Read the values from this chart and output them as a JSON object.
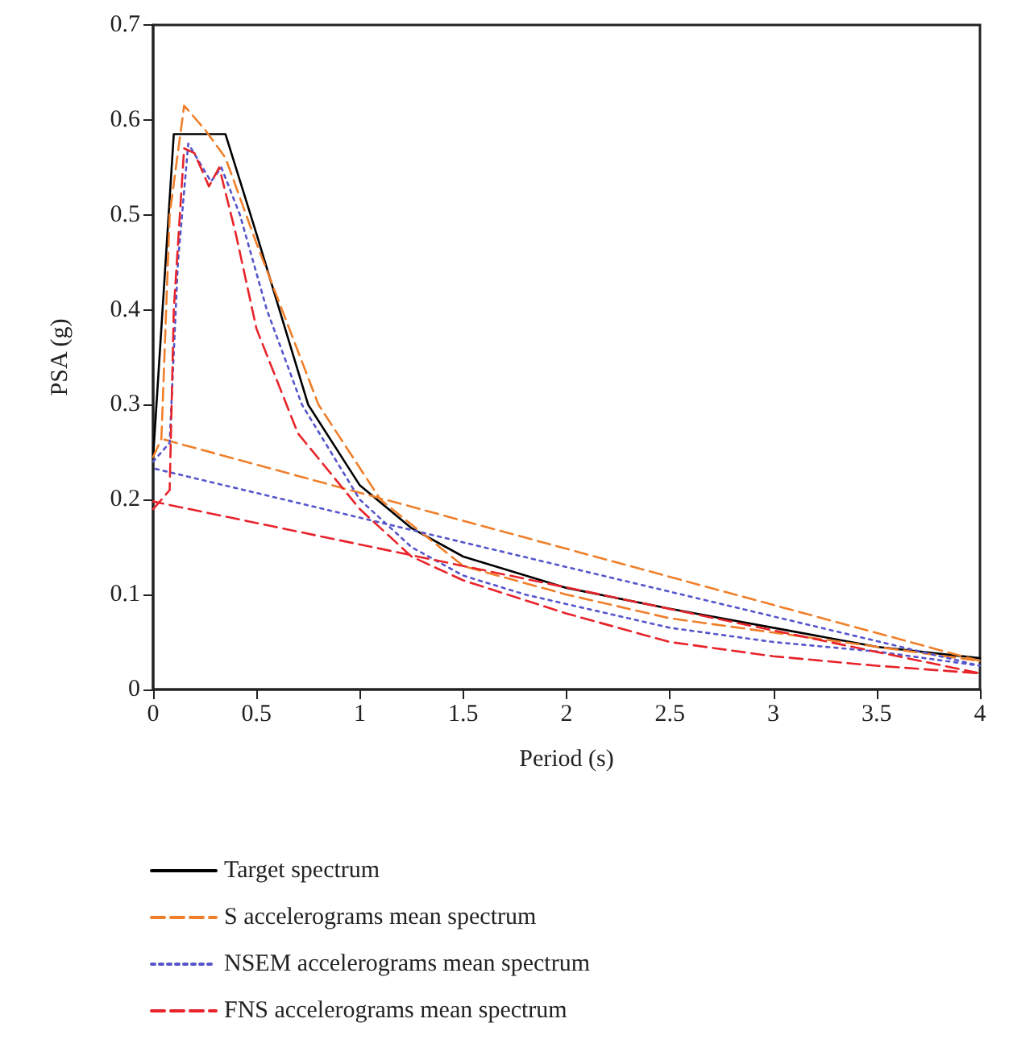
{
  "chart_data": {
    "type": "line",
    "xlabel": "Period (s)",
    "ylabel": "PSA (g)",
    "xlim": [
      0,
      4
    ],
    "ylim": [
      0,
      0.7
    ],
    "xticks": [
      0,
      0.5,
      1,
      1.5,
      2,
      2.5,
      3,
      3.5,
      4
    ],
    "yticks": [
      0,
      0.1,
      0.2,
      0.3,
      0.4,
      0.5,
      0.6,
      0.7
    ],
    "grid": false,
    "legend": "bottom",
    "marker": "none",
    "series": [
      {
        "name": "Target spectrum",
        "color": "#000000",
        "line_style": "solid",
        "x": [
          0,
          0.1,
          0.35,
          0.5,
          0.75,
          1,
          1.25,
          1.5,
          2,
          2.5,
          3,
          3.5,
          4
        ],
        "values": [
          0.245,
          0.585,
          0.585,
          0.48,
          0.3,
          0.215,
          0.17,
          0.14,
          0.107,
          0.085,
          0.065,
          0.045,
          0.033
        ]
      },
      {
        "name": "S accelerograms mean spectrum",
        "color": "#f07f2a",
        "line_style": "dashed",
        "x": [
          0,
          0.04,
          0.08,
          0.15,
          0.25,
          0.35,
          0.5,
          0.8,
          1.1,
          1.5,
          2,
          2.5,
          3,
          3.5,
          4,
          0.04
        ],
        "values": [
          0.245,
          0.264,
          0.5,
          0.615,
          0.59,
          0.56,
          0.47,
          0.3,
          0.2,
          0.13,
          0.1,
          0.075,
          0.06,
          0.045,
          0.03,
          0.264
        ]
      },
      {
        "name": "NSEM accelerograms mean spectrum",
        "color": "#5555cc",
        "line_style": "dotted",
        "x": [
          0,
          0.08,
          0.12,
          0.17,
          0.28,
          0.33,
          0.42,
          0.55,
          0.72,
          1,
          1.25,
          1.5,
          1.8,
          2.2,
          2.5,
          3,
          3.5,
          4,
          0
        ],
        "values": [
          0.24,
          0.26,
          0.45,
          0.575,
          0.535,
          0.55,
          0.5,
          0.4,
          0.3,
          0.2,
          0.15,
          0.12,
          0.1,
          0.08,
          0.065,
          0.05,
          0.04,
          0.025,
          0.233
        ]
      },
      {
        "name": "FNS accelerograms mean spectrum",
        "color": "#e8232a",
        "line_style": "dashed",
        "x": [
          0,
          0.08,
          0.1,
          0.15,
          0.2,
          0.27,
          0.32,
          0.4,
          0.5,
          0.7,
          1,
          1.25,
          1.5,
          2,
          2.5,
          3,
          3.5,
          4,
          0
        ],
        "values": [
          0.19,
          0.21,
          0.4,
          0.57,
          0.565,
          0.53,
          0.55,
          0.48,
          0.38,
          0.27,
          0.19,
          0.14,
          0.115,
          0.08,
          0.05,
          0.035,
          0.025,
          0.017,
          0.198
        ]
      }
    ]
  }
}
